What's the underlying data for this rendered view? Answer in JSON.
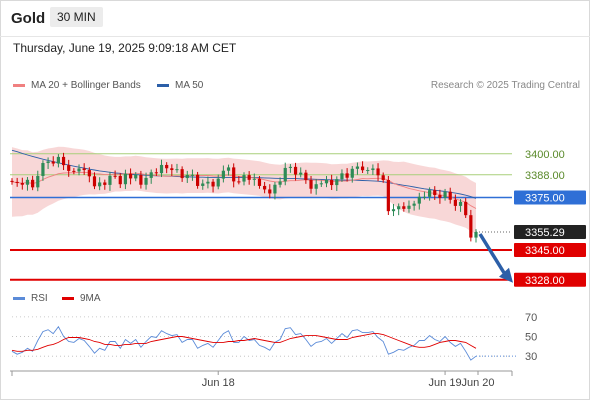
{
  "header": {
    "instrument": "Gold",
    "timeframe": "30 MIN"
  },
  "datetime": "Thursday, June 19, 2025 9:09:18 AM CET",
  "legend": {
    "ma20_label": "MA 20 + Bollinger Bands",
    "ma50_label": "MA 50"
  },
  "research_credit": "Research © 2025 Trading Central",
  "rsi_legend": {
    "rsi_label": "RSI",
    "ma_label": "9MA"
  },
  "colors": {
    "bollinger": "#f6c9c9",
    "ma20": "#f08080",
    "ma50": "#2c5fa8",
    "candle_up": "#2e8b57",
    "candle_down": "#cc0000",
    "resistance": "#a8cf7a",
    "pivot": "#2f6fd6",
    "support": "#e00000",
    "current_tag": "#222222",
    "rsi": "#5b8bd8",
    "rsi_ma": "#e00000"
  },
  "chart_data": [
    {
      "type": "line",
      "title": "",
      "description": "Gold 30-minute candlestick price chart with MA 20, Bollinger Bands and MA 50",
      "x_ticks": [
        "Jun 18",
        "Jun 19",
        "Jun 20"
      ],
      "ylim": [
        3325,
        3425
      ],
      "levels": [
        {
          "value": 3400.0,
          "label": "3400.00",
          "kind": "resistance"
        },
        {
          "value": 3388.0,
          "label": "3388.00",
          "kind": "resistance"
        },
        {
          "value": 3375.0,
          "label": "3375.00",
          "kind": "pivot"
        },
        {
          "value": 3355.29,
          "label": "3355.29",
          "kind": "current"
        },
        {
          "value": 3345.0,
          "label": "3345.00",
          "kind": "support"
        },
        {
          "value": 3328.0,
          "label": "3328.00",
          "kind": "support"
        }
      ],
      "closes": [
        3383.9,
        3383.3,
        3382.3,
        3385.1,
        3380.8,
        3387.3,
        3394.7,
        3395.6,
        3394.4,
        3398.2,
        3393.5,
        3390.2,
        3389.9,
        3391.6,
        3390.7,
        3387.1,
        3381.4,
        3383.6,
        3382.2,
        3387.4,
        3387.3,
        3382.6,
        3388.6,
        3385.9,
        3387.9,
        3382.3,
        3386.2,
        3389.4,
        3388.9,
        3393.6,
        3391.7,
        3390.7,
        3391.2,
        3386.1,
        3387.9,
        3388.0,
        3381.6,
        3383.0,
        3384.0,
        3381.3,
        3385.8,
        3390.3,
        3392.2,
        3384.2,
        3384.1,
        3387.8,
        3385.1,
        3385.7,
        3381.6,
        3379.6,
        3377.3,
        3382.3,
        3384.2,
        3391.9,
        3392.5,
        3388.1,
        3389.2,
        3385.0,
        3380.0,
        3382.6,
        3383.1,
        3385.0,
        3382.1,
        3385.5,
        3388.8,
        3386.3,
        3391.4,
        3392.7,
        3390.6,
        3390.7,
        3391.6,
        3387.7,
        3385.0,
        3367.2,
        3368.3,
        3370.0,
        3368.5,
        3370.3,
        3371.5,
        3375.4,
        3375.4,
        3379.2,
        3376.4,
        3374.8,
        3378.3,
        3373.7,
        3370.2,
        3372.5,
        3364.9,
        3352.1,
        3355.3
      ],
      "ma20": [
        3383.9,
        3383.6,
        3383.2,
        3383.6,
        3383.0,
        3383.7,
        3385.3,
        3386.6,
        3387.5,
        3388.6,
        3389.0,
        3389.1,
        3389.1,
        3389.3,
        3389.4,
        3389.2,
        3388.6,
        3388.4,
        3388.1,
        3388.1,
        3388.3,
        3388.3,
        3388.6,
        3388.6,
        3388.9,
        3388.6,
        3388.1,
        3387.8,
        3387.5,
        3387.3,
        3387.2,
        3387.3,
        3387.4,
        3387.2,
        3387.5,
        3387.5,
        3387.5,
        3387.5,
        3387.6,
        3387.3,
        3387.2,
        3387.6,
        3387.8,
        3387.3,
        3387.1,
        3386.8,
        3386.5,
        3386.2,
        3385.8,
        3385.1,
        3384.4,
        3384.0,
        3383.8,
        3384.3,
        3384.6,
        3384.6,
        3384.9,
        3385.1,
        3384.9,
        3385.0,
        3384.8,
        3384.6,
        3384.1,
        3384.2,
        3384.4,
        3384.4,
        3384.9,
        3385.3,
        3385.8,
        3385.7,
        3385.9,
        3386.0,
        3386.0,
        3384.8,
        3383.1,
        3382.0,
        3381.2,
        3380.2,
        3379.5,
        3378.8,
        3378.3,
        3377.7,
        3377.4,
        3376.6,
        3376.0,
        3375.3,
        3374.2,
        3373.3,
        3372.3,
        3370.3,
        3368.7
      ],
      "ma50": [
        3402.0,
        3401.2,
        3400.2,
        3399.3,
        3398.5,
        3397.7,
        3396.9,
        3396.2,
        3395.5,
        3394.8,
        3394.2,
        3393.5,
        3392.9,
        3392.3,
        3391.8,
        3391.2,
        3390.7,
        3390.2,
        3389.8,
        3389.4,
        3389.0,
        3388.8,
        3388.5,
        3388.3,
        3388.1,
        3387.9,
        3387.7,
        3387.6,
        3387.4,
        3387.3,
        3387.2,
        3387.1,
        3387.0,
        3386.9,
        3386.8,
        3386.7,
        3386.6,
        3386.6,
        3386.5,
        3386.5,
        3386.5,
        3386.5,
        3386.5,
        3386.5,
        3386.5,
        3386.5,
        3386.5,
        3386.4,
        3386.3,
        3386.2,
        3386.1,
        3386.0,
        3385.9,
        3385.8,
        3385.8,
        3385.8,
        3385.7,
        3385.6,
        3385.5,
        3385.4,
        3385.3,
        3385.2,
        3385.1,
        3385.0,
        3385.0,
        3384.9,
        3384.9,
        3384.8,
        3384.7,
        3384.6,
        3384.5,
        3384.3,
        3384.0,
        3383.5,
        3383.0,
        3382.5,
        3382.0,
        3381.5,
        3381.0,
        3380.5,
        3380.0,
        3379.6,
        3379.2,
        3378.8,
        3378.4,
        3378.0,
        3377.5,
        3377.0,
        3376.3,
        3375.5,
        3374.5
      ],
      "bollinger_width": [
        19.9,
        19.4,
        18.9,
        18.4,
        17.9,
        17.4,
        16.9,
        16.4,
        15.9,
        15.4,
        14.9,
        14.4,
        13.9,
        13.4,
        12.9,
        12.4,
        11.9,
        11.4,
        10.9,
        10.4,
        9.9,
        9.9,
        9.9,
        9.9,
        9.9,
        9.9,
        9.9,
        9.9,
        9.9,
        9.9,
        9.9,
        9.9,
        9.9,
        9.9,
        9.9,
        9.9,
        9.9,
        9.9,
        9.9,
        9.9,
        9.9,
        9.9,
        9.9,
        9.9,
        9.9,
        9.9,
        9.9,
        9.9,
        9.9,
        9.9,
        9.9,
        9.9,
        9.9,
        9.9,
        9.9,
        9.9,
        9.9,
        9.9,
        9.9,
        9.9,
        9.9,
        9.9,
        9.9,
        9.9,
        9.9,
        9.9,
        9.9,
        9.9,
        9.9,
        9.9,
        9.9,
        9.9,
        10.2,
        11.3,
        12.3,
        13.3,
        14.3,
        14.6,
        14.6,
        14.6,
        14.6,
        14.6,
        14.6,
        14.6,
        14.6,
        14.6,
        14.6,
        14.6,
        14.6,
        14.6,
        14.6
      ],
      "forecast_arrow": {
        "from": 3355.29,
        "to": 3328.0
      }
    },
    {
      "type": "line",
      "title": "",
      "description": "RSI oscillator with 9-period moving average",
      "yticks": [
        70,
        50,
        30
      ],
      "ylim": [
        20,
        75
      ],
      "series": [
        {
          "name": "RSI",
          "values": [
            35,
            32,
            34,
            38,
            35,
            46,
            55,
            57,
            53,
            60,
            50,
            45,
            44,
            48,
            46,
            40,
            33,
            38,
            36,
            45,
            45,
            38,
            47,
            43,
            47,
            39,
            45,
            50,
            49,
            56,
            53,
            51,
            52,
            44,
            47,
            47,
            38,
            41,
            43,
            39,
            46,
            53,
            56,
            44,
            44,
            50,
            46,
            47,
            41,
            39,
            36,
            44,
            47,
            58,
            59,
            52,
            53,
            47,
            40,
            44,
            45,
            48,
            43,
            48,
            53,
            49,
            56,
            57,
            54,
            54,
            55,
            49,
            45,
            32,
            34,
            37,
            36,
            39,
            41,
            46,
            46,
            51,
            47,
            45,
            50,
            44,
            40,
            43,
            35,
            26,
            30
          ]
        },
        {
          "name": "9MA",
          "values": [
            36,
            35,
            35,
            36,
            36,
            37,
            39,
            41,
            42,
            44,
            47,
            49,
            49,
            49,
            48,
            47,
            45,
            44,
            42,
            42,
            41,
            41,
            42,
            42,
            43,
            43,
            43,
            45,
            46,
            47,
            48,
            49,
            50,
            50,
            49,
            48,
            47,
            46,
            45,
            44,
            44,
            44,
            45,
            45,
            46,
            46,
            47,
            48,
            47,
            46,
            45,
            44,
            44,
            46,
            48,
            49,
            50,
            51,
            51,
            51,
            50,
            49,
            48,
            47,
            47,
            47,
            49,
            50,
            51,
            52,
            53,
            53,
            52,
            50,
            48,
            46,
            44,
            42,
            40,
            39,
            39,
            40,
            42,
            44,
            45,
            46,
            46,
            45,
            44,
            41,
            38
          ]
        }
      ]
    }
  ]
}
